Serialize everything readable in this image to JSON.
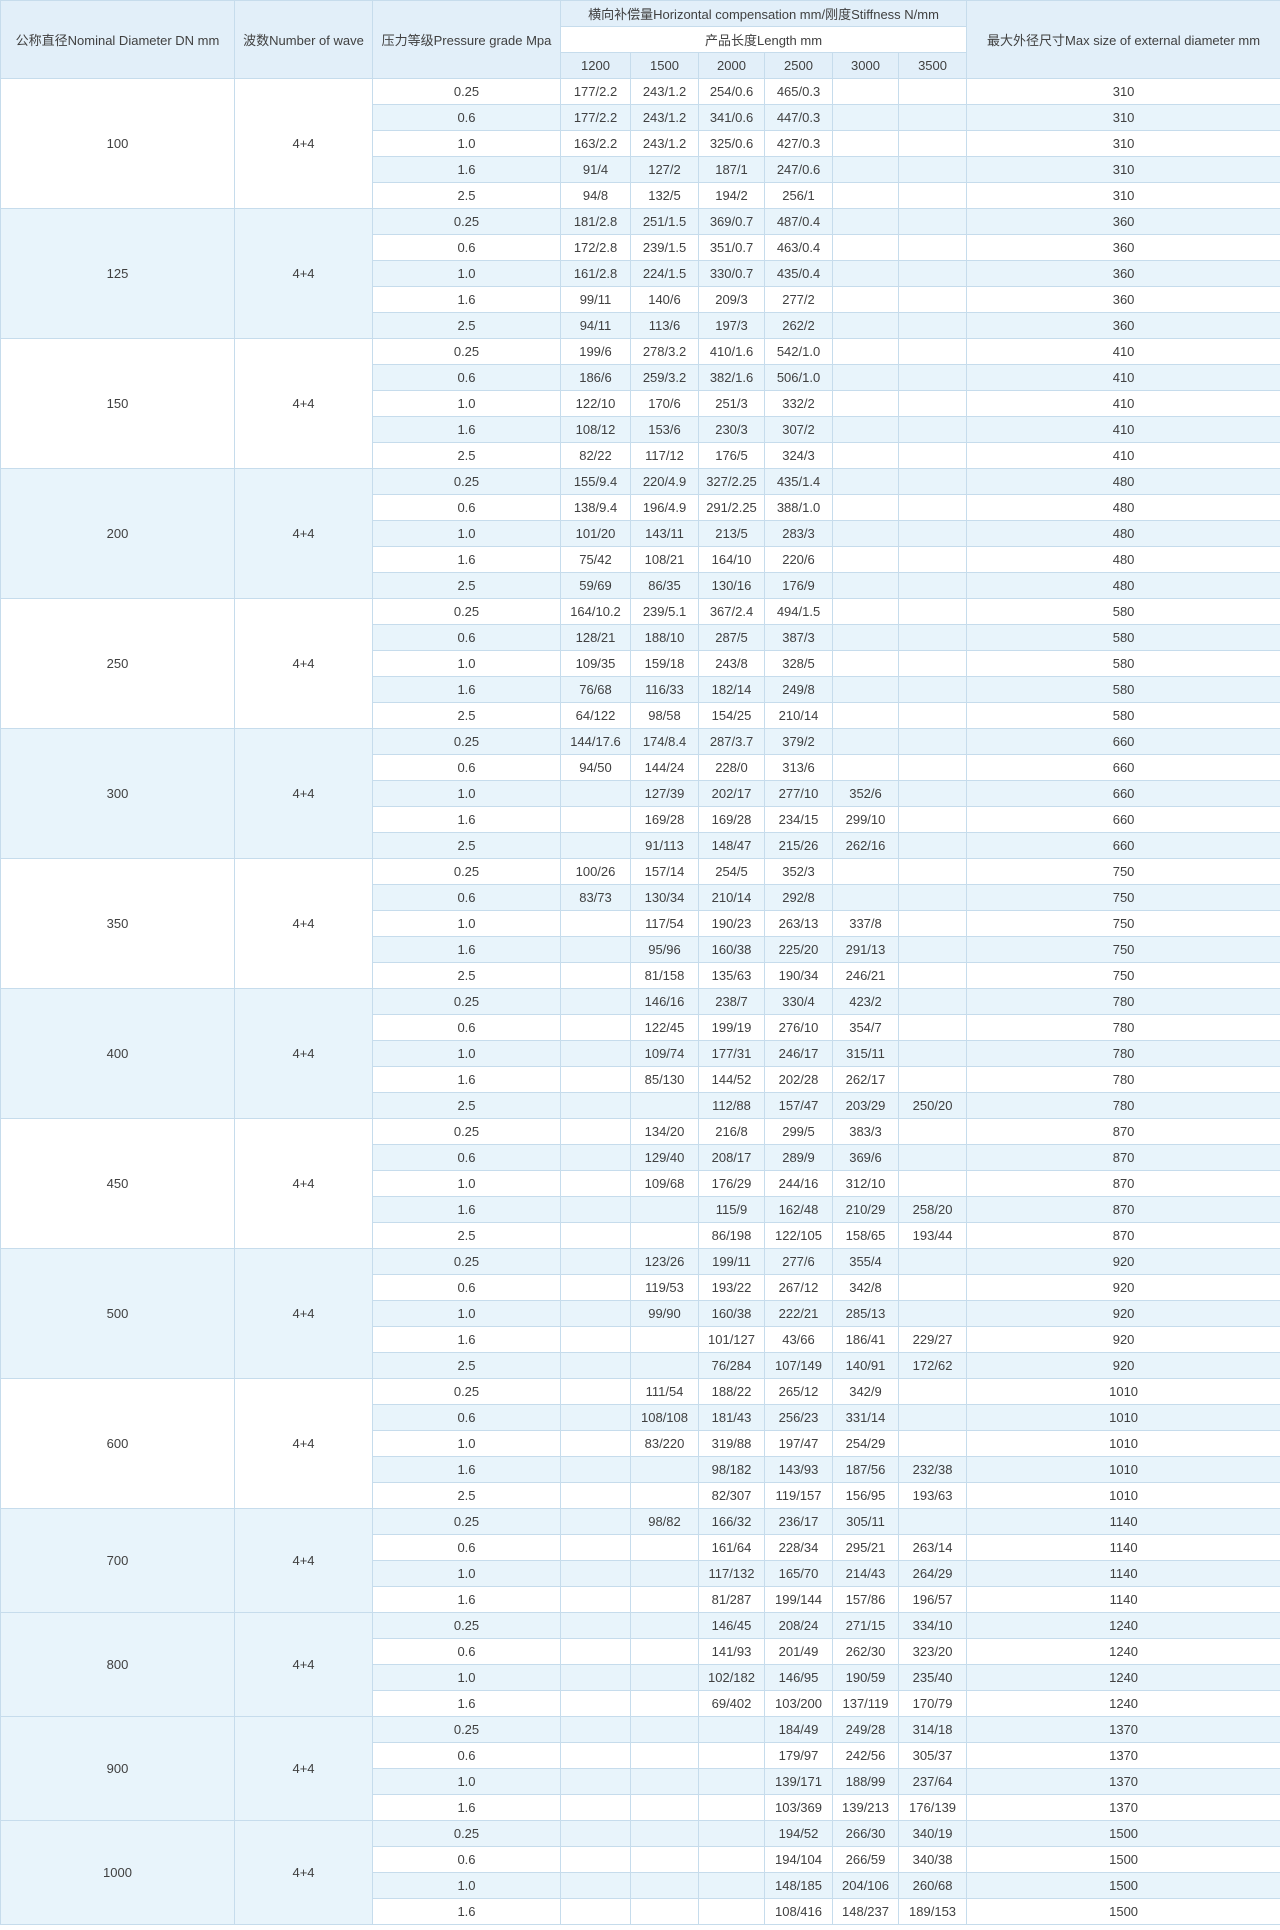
{
  "table": {
    "headers": {
      "nominal_diameter": "公称直径Nominal Diameter DN mm",
      "number_of_wave": "波数Number of wave",
      "pressure_grade": "压力等级Pressure grade Mpa",
      "compensation_stiffness": "横向补偿量Horizontal compensation mm/刚度Stiffness N/mm",
      "product_length": "产品长度Length mm",
      "lengths": [
        "1200",
        "1500",
        "2000",
        "2500",
        "3000",
        "3500"
      ],
      "max_external_diameter": "最大外径尺寸Max size of external diameter mm"
    },
    "groups": [
      {
        "dn": "100",
        "wave": "4+4",
        "max_diameter": "310",
        "rows": [
          {
            "grade": "0.25",
            "values": [
              "177/2.2",
              "243/1.2",
              "254/0.6",
              "465/0.3",
              "",
              ""
            ]
          },
          {
            "grade": "0.6",
            "values": [
              "177/2.2",
              "243/1.2",
              "341/0.6",
              "447/0.3",
              "",
              ""
            ]
          },
          {
            "grade": "1.0",
            "values": [
              "163/2.2",
              "243/1.2",
              "325/0.6",
              "427/0.3",
              "",
              ""
            ]
          },
          {
            "grade": "1.6",
            "values": [
              "91/4",
              "127/2",
              "187/1",
              "247/0.6",
              "",
              ""
            ]
          },
          {
            "grade": "2.5",
            "values": [
              "94/8",
              "132/5",
              "194/2",
              "256/1",
              "",
              ""
            ]
          }
        ]
      },
      {
        "dn": "125",
        "wave": "4+4",
        "max_diameter": "360",
        "rows": [
          {
            "grade": "0.25",
            "values": [
              "181/2.8",
              "251/1.5",
              "369/0.7",
              "487/0.4",
              "",
              ""
            ]
          },
          {
            "grade": "0.6",
            "values": [
              "172/2.8",
              "239/1.5",
              "351/0.7",
              "463/0.4",
              "",
              ""
            ]
          },
          {
            "grade": "1.0",
            "values": [
              "161/2.8",
              "224/1.5",
              "330/0.7",
              "435/0.4",
              "",
              ""
            ]
          },
          {
            "grade": "1.6",
            "values": [
              "99/11",
              "140/6",
              "209/3",
              "277/2",
              "",
              ""
            ]
          },
          {
            "grade": "2.5",
            "values": [
              "94/11",
              "113/6",
              "197/3",
              "262/2",
              "",
              ""
            ]
          }
        ]
      },
      {
        "dn": "150",
        "wave": "4+4",
        "max_diameter": "410",
        "rows": [
          {
            "grade": "0.25",
            "values": [
              "199/6",
              "278/3.2",
              "410/1.6",
              "542/1.0",
              "",
              ""
            ]
          },
          {
            "grade": "0.6",
            "values": [
              "186/6",
              "259/3.2",
              "382/1.6",
              "506/1.0",
              "",
              ""
            ]
          },
          {
            "grade": "1.0",
            "values": [
              "122/10",
              "170/6",
              "251/3",
              "332/2",
              "",
              ""
            ]
          },
          {
            "grade": "1.6",
            "values": [
              "108/12",
              "153/6",
              "230/3",
              "307/2",
              "",
              ""
            ]
          },
          {
            "grade": "2.5",
            "values": [
              "82/22",
              "117/12",
              "176/5",
              "324/3",
              "",
              ""
            ]
          }
        ]
      },
      {
        "dn": "200",
        "wave": "4+4",
        "max_diameter": "480",
        "rows": [
          {
            "grade": "0.25",
            "values": [
              "155/9.4",
              "220/4.9",
              "327/2.25",
              "435/1.4",
              "",
              ""
            ]
          },
          {
            "grade": "0.6",
            "values": [
              "138/9.4",
              "196/4.9",
              "291/2.25",
              "388/1.0",
              "",
              ""
            ]
          },
          {
            "grade": "1.0",
            "values": [
              "101/20",
              "143/11",
              "213/5",
              "283/3",
              "",
              ""
            ]
          },
          {
            "grade": "1.6",
            "values": [
              "75/42",
              "108/21",
              "164/10",
              "220/6",
              "",
              ""
            ]
          },
          {
            "grade": "2.5",
            "values": [
              "59/69",
              "86/35",
              "130/16",
              "176/9",
              "",
              ""
            ]
          }
        ]
      },
      {
        "dn": "250",
        "wave": "4+4",
        "max_diameter": "580",
        "rows": [
          {
            "grade": "0.25",
            "values": [
              "164/10.2",
              "239/5.1",
              "367/2.4",
              "494/1.5",
              "",
              ""
            ]
          },
          {
            "grade": "0.6",
            "values": [
              "128/21",
              "188/10",
              "287/5",
              "387/3",
              "",
              ""
            ]
          },
          {
            "grade": "1.0",
            "values": [
              "109/35",
              "159/18",
              "243/8",
              "328/5",
              "",
              ""
            ]
          },
          {
            "grade": "1.6",
            "values": [
              "76/68",
              "116/33",
              "182/14",
              "249/8",
              "",
              ""
            ]
          },
          {
            "grade": "2.5",
            "values": [
              "64/122",
              "98/58",
              "154/25",
              "210/14",
              "",
              ""
            ]
          }
        ]
      },
      {
        "dn": "300",
        "wave": "4+4",
        "max_diameter": "660",
        "rows": [
          {
            "grade": "0.25",
            "values": [
              "144/17.6",
              "174/8.4",
              "287/3.7",
              "379/2",
              "",
              ""
            ]
          },
          {
            "grade": "0.6",
            "values": [
              "94/50",
              "144/24",
              "228/0",
              "313/6",
              "",
              ""
            ]
          },
          {
            "grade": "1.0",
            "values": [
              "",
              "127/39",
              "202/17",
              "277/10",
              "352/6",
              ""
            ]
          },
          {
            "grade": "1.6",
            "values": [
              "",
              "169/28",
              "169/28",
              "234/15",
              "299/10",
              ""
            ]
          },
          {
            "grade": "2.5",
            "values": [
              "",
              "91/113",
              "148/47",
              "215/26",
              "262/16",
              ""
            ]
          }
        ]
      },
      {
        "dn": "350",
        "wave": "4+4",
        "max_diameter": "750",
        "rows": [
          {
            "grade": "0.25",
            "values": [
              "100/26",
              "157/14",
              "254/5",
              "352/3",
              "",
              ""
            ]
          },
          {
            "grade": "0.6",
            "values": [
              "83/73",
              "130/34",
              "210/14",
              "292/8",
              "",
              ""
            ]
          },
          {
            "grade": "1.0",
            "values": [
              "",
              "117/54",
              "190/23",
              "263/13",
              "337/8",
              ""
            ]
          },
          {
            "grade": "1.6",
            "values": [
              "",
              "95/96",
              "160/38",
              "225/20",
              "291/13",
              ""
            ]
          },
          {
            "grade": "2.5",
            "values": [
              "",
              "81/158",
              "135/63",
              "190/34",
              "246/21",
              ""
            ]
          }
        ]
      },
      {
        "dn": "400",
        "wave": "4+4",
        "max_diameter": "780",
        "rows": [
          {
            "grade": "0.25",
            "values": [
              "",
              "146/16",
              "238/7",
              "330/4",
              "423/2",
              ""
            ]
          },
          {
            "grade": "0.6",
            "values": [
              "",
              "122/45",
              "199/19",
              "276/10",
              "354/7",
              ""
            ]
          },
          {
            "grade": "1.0",
            "values": [
              "",
              "109/74",
              "177/31",
              "246/17",
              "315/11",
              ""
            ]
          },
          {
            "grade": "1.6",
            "values": [
              "",
              "85/130",
              "144/52",
              "202/28",
              "262/17",
              ""
            ]
          },
          {
            "grade": "2.5",
            "values": [
              "",
              "",
              "112/88",
              "157/47",
              "203/29",
              "250/20"
            ]
          }
        ]
      },
      {
        "dn": "450",
        "wave": "4+4",
        "max_diameter": "870",
        "rows": [
          {
            "grade": "0.25",
            "values": [
              "",
              "134/20",
              "216/8",
              "299/5",
              "383/3",
              ""
            ]
          },
          {
            "grade": "0.6",
            "values": [
              "",
              "129/40",
              "208/17",
              "289/9",
              "369/6",
              ""
            ]
          },
          {
            "grade": "1.0",
            "values": [
              "",
              "109/68",
              "176/29",
              "244/16",
              "312/10",
              ""
            ]
          },
          {
            "grade": "1.6",
            "values": [
              "",
              "",
              "115/9",
              "162/48",
              "210/29",
              "258/20"
            ]
          },
          {
            "grade": "2.5",
            "values": [
              "",
              "",
              "86/198",
              "122/105",
              "158/65",
              "193/44"
            ]
          }
        ]
      },
      {
        "dn": "500",
        "wave": "4+4",
        "max_diameter": "920",
        "rows": [
          {
            "grade": "0.25",
            "values": [
              "",
              "123/26",
              "199/11",
              "277/6",
              "355/4",
              ""
            ]
          },
          {
            "grade": "0.6",
            "values": [
              "",
              "119/53",
              "193/22",
              "267/12",
              "342/8",
              ""
            ]
          },
          {
            "grade": "1.0",
            "values": [
              "",
              "99/90",
              "160/38",
              "222/21",
              "285/13",
              ""
            ]
          },
          {
            "grade": "1.6",
            "values": [
              "",
              "",
              "101/127",
              "43/66",
              "186/41",
              "229/27"
            ]
          },
          {
            "grade": "2.5",
            "values": [
              "",
              "",
              "76/284",
              "107/149",
              "140/91",
              "172/62"
            ]
          }
        ]
      },
      {
        "dn": "600",
        "wave": "4+4",
        "max_diameter": "1010",
        "rows": [
          {
            "grade": "0.25",
            "values": [
              "",
              "111/54",
              "188/22",
              "265/12",
              "342/9",
              ""
            ]
          },
          {
            "grade": "0.6",
            "values": [
              "",
              "108/108",
              "181/43",
              "256/23",
              "331/14",
              ""
            ]
          },
          {
            "grade": "1.0",
            "values": [
              "",
              "83/220",
              "319/88",
              "197/47",
              "254/29",
              ""
            ]
          },
          {
            "grade": "1.6",
            "values": [
              "",
              "",
              "98/182",
              "143/93",
              "187/56",
              "232/38"
            ]
          },
          {
            "grade": "2.5",
            "values": [
              "",
              "",
              "82/307",
              "119/157",
              "156/95",
              "193/63"
            ]
          }
        ]
      },
      {
        "dn": "700",
        "wave": "4+4",
        "max_diameter": "1140",
        "rows": [
          {
            "grade": "0.25",
            "values": [
              "",
              "98/82",
              "166/32",
              "236/17",
              "305/11",
              ""
            ]
          },
          {
            "grade": "0.6",
            "values": [
              "",
              "",
              "161/64",
              "228/34",
              "295/21",
              "263/14"
            ]
          },
          {
            "grade": "1.0",
            "values": [
              "",
              "",
              "117/132",
              "165/70",
              "214/43",
              "264/29"
            ]
          },
          {
            "grade": "1.6",
            "values": [
              "",
              "",
              "81/287",
              "199/144",
              "157/86",
              "196/57"
            ]
          }
        ]
      },
      {
        "dn": "800",
        "wave": "4+4",
        "max_diameter": "1240",
        "rows": [
          {
            "grade": "0.25",
            "values": [
              "",
              "",
              "146/45",
              "208/24",
              "271/15",
              "334/10"
            ]
          },
          {
            "grade": "0.6",
            "values": [
              "",
              "",
              "141/93",
              "201/49",
              "262/30",
              "323/20"
            ]
          },
          {
            "grade": "1.0",
            "values": [
              "",
              "",
              "102/182",
              "146/95",
              "190/59",
              "235/40"
            ]
          },
          {
            "grade": "1.6",
            "values": [
              "",
              "",
              "69/402",
              "103/200",
              "137/119",
              "170/79"
            ]
          }
        ]
      },
      {
        "dn": "900",
        "wave": "4+4",
        "max_diameter": "1370",
        "rows": [
          {
            "grade": "0.25",
            "values": [
              "",
              "",
              "",
              "184/49",
              "249/28",
              "314/18"
            ]
          },
          {
            "grade": "0.6",
            "values": [
              "",
              "",
              "",
              "179/97",
              "242/56",
              "305/37"
            ]
          },
          {
            "grade": "1.0",
            "values": [
              "",
              "",
              "",
              "139/171",
              "188/99",
              "237/64"
            ]
          },
          {
            "grade": "1.6",
            "values": [
              "",
              "",
              "",
              "103/369",
              "139/213",
              "176/139"
            ]
          }
        ]
      },
      {
        "dn": "1000",
        "wave": "4+4",
        "max_diameter": "1500",
        "rows": [
          {
            "grade": "0.25",
            "values": [
              "",
              "",
              "",
              "194/52",
              "266/30",
              "340/19"
            ]
          },
          {
            "grade": "0.6",
            "values": [
              "",
              "",
              "",
              "194/104",
              "266/59",
              "340/38"
            ]
          },
          {
            "grade": "1.0",
            "values": [
              "",
              "",
              "",
              "148/185",
              "204/106",
              "260/68"
            ]
          },
          {
            "grade": "1.6",
            "values": [
              "",
              "",
              "",
              "108/416",
              "148/237",
              "189/153"
            ]
          }
        ]
      }
    ]
  },
  "colors": {
    "stripe": "#e8f4fb",
    "header_bg": "#e2eff9",
    "border": "#c6dcec",
    "group_border": "#aec8dc",
    "text": "#404040"
  }
}
